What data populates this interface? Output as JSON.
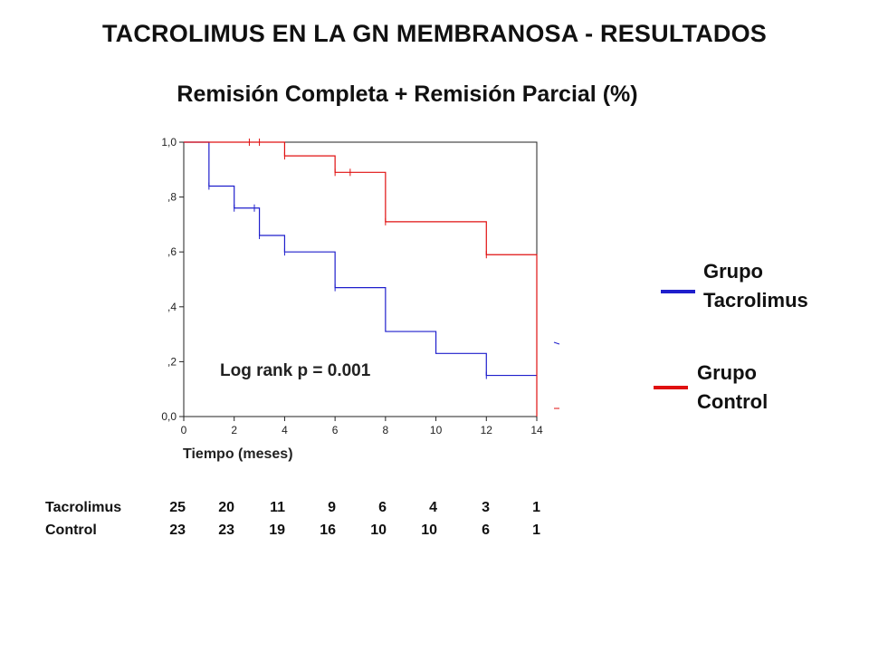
{
  "page_title": "TACROLIMUS EN LA GN MEMBRANOSA - RESULTADOS",
  "subtitle": "Remisión Completa + Remisión Parcial (%)",
  "chart_data": {
    "type": "line",
    "step": true,
    "xlabel": "Tiempo (meses)",
    "ylabel": "",
    "xlim": [
      0,
      14
    ],
    "ylim": [
      0,
      1
    ],
    "x_ticks": [
      "0",
      "2",
      "4",
      "6",
      "8",
      "10",
      "12",
      "14"
    ],
    "y_ticks": [
      "0,0",
      ",2",
      ",4",
      ",6",
      ",8",
      "1,0"
    ],
    "annotation": "Log rank p = 0.001",
    "series": [
      {
        "name": "Grupo Tacrolimus",
        "color": "#1f1fcc",
        "x": [
          0,
          1,
          2,
          3,
          4,
          6,
          8,
          10,
          12,
          14
        ],
        "y": [
          1.0,
          0.84,
          0.76,
          0.66,
          0.6,
          0.47,
          0.31,
          0.23,
          0.15,
          0.15
        ],
        "censored": [
          [
            1,
            0.84
          ],
          [
            2,
            0.76
          ],
          [
            2.8,
            0.76
          ],
          [
            3,
            0.66
          ],
          [
            4,
            0.6
          ],
          [
            6,
            0.47
          ],
          [
            12,
            0.15
          ]
        ]
      },
      {
        "name": "Grupo Control",
        "color": "#e01010",
        "x": [
          0,
          4,
          6,
          8,
          12,
          14,
          14
        ],
        "y": [
          1.0,
          0.95,
          0.89,
          0.71,
          0.59,
          0.59,
          0.0
        ],
        "censored": [
          [
            2.6,
            1.0
          ],
          [
            3.0,
            1.0
          ],
          [
            4,
            0.95
          ],
          [
            6,
            0.89
          ],
          [
            6.6,
            0.89
          ],
          [
            8,
            0.71
          ],
          [
            12,
            0.59
          ]
        ]
      }
    ],
    "number_at_risk": {
      "times": [
        0,
        2,
        4,
        6,
        8,
        10,
        12,
        14
      ],
      "rows": [
        {
          "label": "Tacrolimus",
          "values": [
            "25",
            "20",
            "11",
            "9",
            "6",
            "4",
            "3",
            "1"
          ]
        },
        {
          "label": "Control",
          "values": [
            "23",
            "23",
            "19",
            "16",
            "10",
            "10",
            "6",
            "1"
          ]
        }
      ]
    }
  },
  "legend": [
    {
      "line1": "Grupo",
      "line2": "Tacrolimus",
      "color": "#1f1fcc"
    },
    {
      "line1": "Grupo",
      "line2": "Control",
      "color": "#e01010"
    }
  ]
}
